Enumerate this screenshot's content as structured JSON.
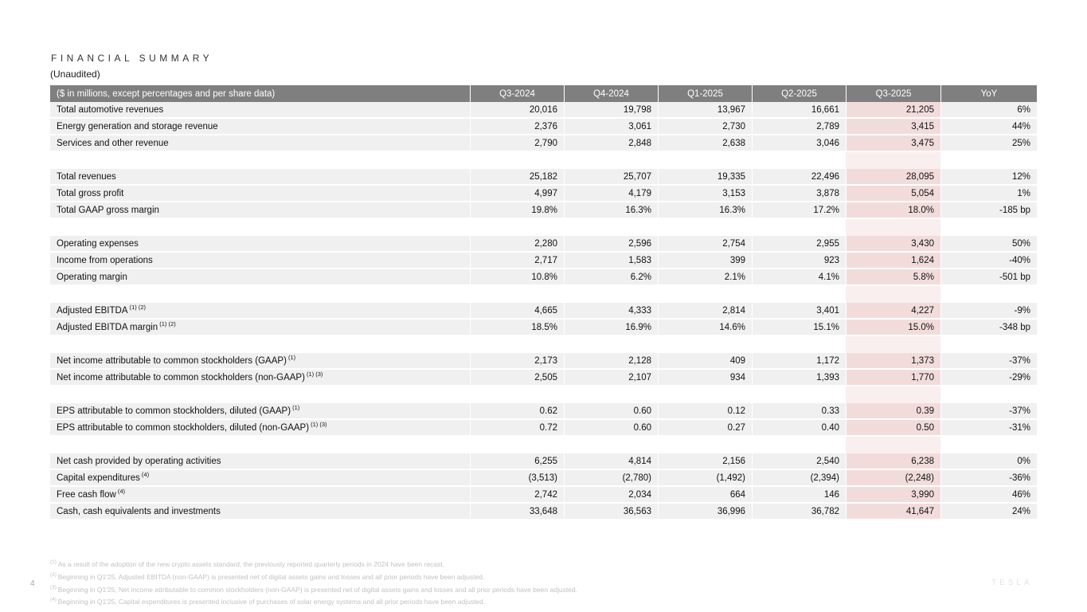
{
  "page": {
    "title": "FINANCIAL SUMMARY",
    "subtitle": "(Unaudited)",
    "page_number": "4",
    "watermark": "TESLA"
  },
  "colors": {
    "header_bg": "#7f7f7f",
    "header_text": "#ffffff",
    "row_bg": "#f0f0f0",
    "highlight_bg": "#f2dcdb",
    "highlight_spacer_bg": "#f9efee",
    "footnote_text": "#c2c2c2"
  },
  "table": {
    "columns": [
      "($ in millions, except percentages and per share data)",
      "Q3-2024",
      "Q4-2024",
      "Q1-2025",
      "Q2-2025",
      "Q3-2025",
      "YoY"
    ],
    "highlight_column": "Q3-2025",
    "rows": [
      {
        "type": "data",
        "label": "Total automotive revenues",
        "sup": "",
        "values": [
          "20,016",
          "19,798",
          "13,967",
          "16,661",
          "21,205",
          "6%"
        ]
      },
      {
        "type": "data",
        "label": "Energy generation and storage revenue",
        "sup": "",
        "values": [
          "2,376",
          "3,061",
          "2,730",
          "2,789",
          "3,415",
          "44%"
        ]
      },
      {
        "type": "data",
        "label": "Services and other revenue",
        "sup": "",
        "values": [
          "2,790",
          "2,848",
          "2,638",
          "3,046",
          "3,475",
          "25%"
        ]
      },
      {
        "type": "spacer"
      },
      {
        "type": "data",
        "label": "Total revenues",
        "sup": "",
        "values": [
          "25,182",
          "25,707",
          "19,335",
          "22,496",
          "28,095",
          "12%"
        ]
      },
      {
        "type": "data",
        "label": "Total gross profit",
        "sup": "",
        "values": [
          "4,997",
          "4,179",
          "3,153",
          "3,878",
          "5,054",
          "1%"
        ]
      },
      {
        "type": "data",
        "label": "Total GAAP gross margin",
        "sup": "",
        "values": [
          "19.8%",
          "16.3%",
          "16.3%",
          "17.2%",
          "18.0%",
          "-185 bp"
        ]
      },
      {
        "type": "spacer"
      },
      {
        "type": "data",
        "label": "Operating expenses",
        "sup": "",
        "values": [
          "2,280",
          "2,596",
          "2,754",
          "2,955",
          "3,430",
          "50%"
        ]
      },
      {
        "type": "data",
        "label": "Income from operations",
        "sup": "",
        "values": [
          "2,717",
          "1,583",
          "399",
          "923",
          "1,624",
          "-40%"
        ]
      },
      {
        "type": "data",
        "label": "Operating margin",
        "sup": "",
        "values": [
          "10.8%",
          "6.2%",
          "2.1%",
          "4.1%",
          "5.8%",
          "-501 bp"
        ]
      },
      {
        "type": "spacer"
      },
      {
        "type": "data",
        "label": "Adjusted EBITDA",
        "sup": "(1) (2)",
        "values": [
          "4,665",
          "4,333",
          "2,814",
          "3,401",
          "4,227",
          "-9%"
        ]
      },
      {
        "type": "data",
        "label": "Adjusted EBITDA margin",
        "sup": "(1) (2)",
        "values": [
          "18.5%",
          "16.9%",
          "14.6%",
          "15.1%",
          "15.0%",
          "-348 bp"
        ]
      },
      {
        "type": "spacer"
      },
      {
        "type": "data",
        "label": "Net income attributable to common stockholders (GAAP)",
        "sup": "(1)",
        "values": [
          "2,173",
          "2,128",
          "409",
          "1,172",
          "1,373",
          "-37%"
        ]
      },
      {
        "type": "data",
        "label": "Net income attributable to common stockholders (non-GAAP)",
        "sup": "(1) (3)",
        "values": [
          "2,505",
          "2,107",
          "934",
          "1,393",
          "1,770",
          "-29%"
        ]
      },
      {
        "type": "spacer"
      },
      {
        "type": "data",
        "label": "EPS attributable to common stockholders, diluted (GAAP)",
        "sup": "(1)",
        "values": [
          "0.62",
          "0.60",
          "0.12",
          "0.33",
          "0.39",
          "-37%"
        ]
      },
      {
        "type": "data",
        "label": "EPS attributable to common stockholders, diluted (non-GAAP)",
        "sup": "(1) (3)",
        "values": [
          "0.72",
          "0.60",
          "0.27",
          "0.40",
          "0.50",
          "-31%"
        ]
      },
      {
        "type": "spacer"
      },
      {
        "type": "data",
        "label": "Net cash provided by operating activities",
        "sup": "",
        "values": [
          "6,255",
          "4,814",
          "2,156",
          "2,540",
          "6,238",
          "0%"
        ]
      },
      {
        "type": "data",
        "label": "Capital expenditures",
        "sup": "(4)",
        "values": [
          "(3,513)",
          "(2,780)",
          "(1,492)",
          "(2,394)",
          "(2,248)",
          "-36%"
        ]
      },
      {
        "type": "data",
        "label": "Free cash flow",
        "sup": "(4)",
        "values": [
          "2,742",
          "2,034",
          "664",
          "146",
          "3,990",
          "46%"
        ]
      },
      {
        "type": "data",
        "label": "Cash, cash equivalents and investments",
        "sup": "",
        "values": [
          "33,648",
          "36,563",
          "36,996",
          "36,782",
          "41,647",
          "24%"
        ]
      }
    ]
  },
  "footnotes": [
    {
      "marker": "(1)",
      "text": "As a result of the adoption of the new crypto assets standard, the previously reported quarterly periods in 2024 have been recast."
    },
    {
      "marker": "(2)",
      "text": "Beginning in Q1'25, Adjusted EBITDA (non-GAAP) is presented net of digital assets gains and losses and all prior periods have been adjusted."
    },
    {
      "marker": "(3)",
      "text": "Beginning in Q1'25, Net income attributable to common stockholders (non-GAAP) is presented net of digital assets gains and losses and all prior periods have been adjusted."
    },
    {
      "marker": "(4)",
      "text": "Beginning in Q1'25, Capital expenditures is presented inclusive of purchases of solar energy systems and all prior periods have been adjusted."
    }
  ]
}
